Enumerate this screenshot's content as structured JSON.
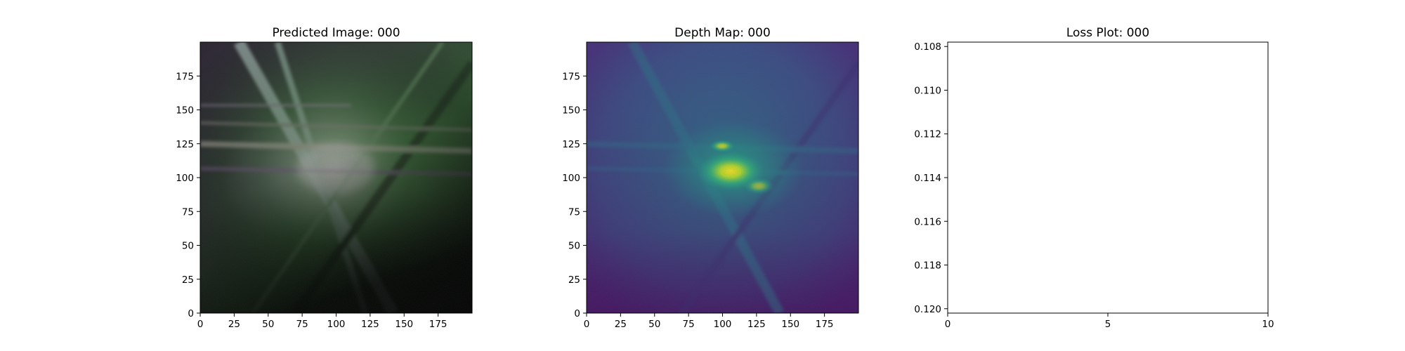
{
  "chart_data": [
    {
      "type": "heatmap",
      "title": "Predicted Image: 000",
      "xlim": [
        0,
        200
      ],
      "ylim": [
        200,
        0
      ],
      "x_ticks": [
        0,
        25,
        50,
        75,
        100,
        125,
        150,
        175
      ],
      "y_ticks": [
        0,
        25,
        50,
        75,
        100,
        125,
        150,
        175
      ],
      "grid": false,
      "image_center": [
        100,
        95
      ],
      "base_colors": [
        "#040606",
        "#2a3a2c",
        "#5fa35a",
        "#d8e4d2"
      ],
      "streak_colors": [
        "#c9e6da",
        "#9a6fb0",
        "#7fb07d",
        "#1c2a1d"
      ]
    },
    {
      "type": "heatmap",
      "title": "Depth Map: 000",
      "xlim": [
        0,
        200
      ],
      "ylim": [
        200,
        0
      ],
      "x_ticks": [
        0,
        25,
        50,
        75,
        100,
        125,
        150,
        175
      ],
      "y_ticks": [
        0,
        25,
        50,
        75,
        100,
        125,
        150,
        175
      ],
      "grid": false,
      "colormap": [
        "#440154",
        "#414487",
        "#2a788e",
        "#22a884",
        "#7ad151",
        "#fde725"
      ],
      "peak_center": [
        107,
        94
      ]
    },
    {
      "type": "line",
      "title": "Loss Plot: 000",
      "xlim": [
        0,
        10
      ],
      "ylim": [
        0.1078,
        0.1202
      ],
      "x_ticks": [
        0,
        5,
        10
      ],
      "y_ticks": [
        0.108,
        0.11,
        0.112,
        0.114,
        0.116,
        0.118,
        0.12
      ],
      "series": [],
      "grid": false
    }
  ]
}
